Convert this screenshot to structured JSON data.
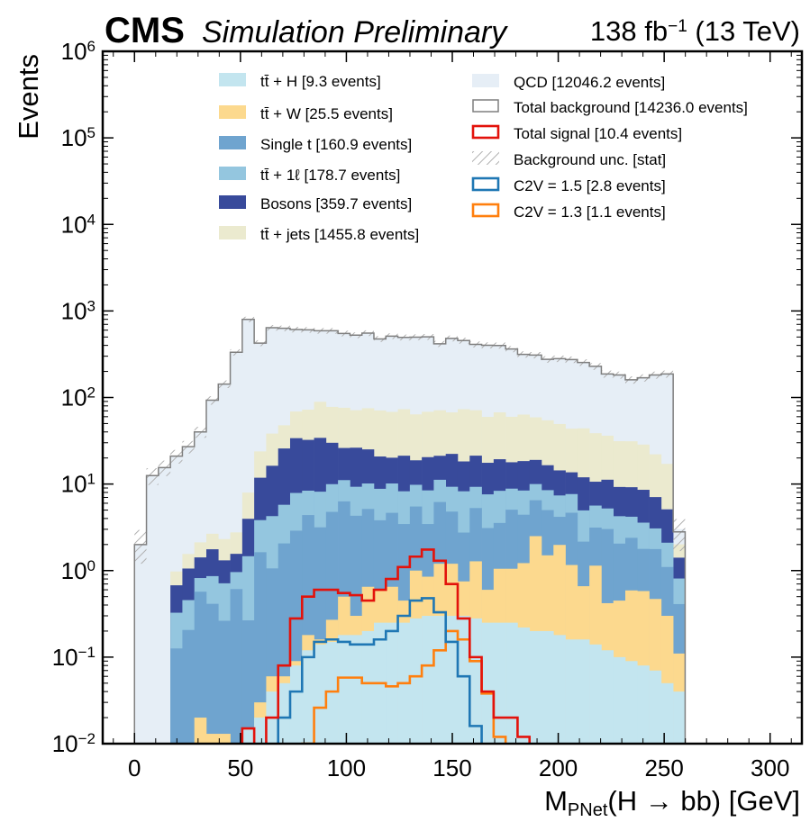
{
  "header": {
    "experiment": "CMS",
    "status": "Simulation Preliminary",
    "lumi_prefix": "138 fb",
    "lumi_exp": "−1",
    "lumi_suffix": " (13 TeV)"
  },
  "chart_data": {
    "type": "bar",
    "stacked": true,
    "histtype": "step-filled",
    "xlabel_main": "M",
    "xlabel_sub": "PNet",
    "xlabel_rest": "(H → bb) [GeV]",
    "ylabel": "Events",
    "xlim": [
      -15,
      315
    ],
    "ylim": [
      0.01,
      1000000
    ],
    "yscale": "log",
    "x_ticks": [
      0,
      50,
      100,
      150,
      200,
      250,
      300
    ],
    "y_ticks": [
      {
        "base": "10",
        "exp": "−2",
        "value": 0.01
      },
      {
        "base": "10",
        "exp": "−1",
        "value": 0.1
      },
      {
        "base": "10",
        "exp": "0",
        "value": 1
      },
      {
        "base": "10",
        "exp": "1",
        "value": 10
      },
      {
        "base": "10",
        "exp": "2",
        "value": 100
      },
      {
        "base": "10",
        "exp": "3",
        "value": 1000
      },
      {
        "base": "10",
        "exp": "4",
        "value": 10000
      },
      {
        "base": "10",
        "exp": "5",
        "value": 100000
      },
      {
        "base": "10",
        "exp": "6",
        "value": 1000000
      }
    ],
    "bin_width": 5.65,
    "bin_start": 0,
    "legend_placement": "upper",
    "stack": [
      {
        "name": "tt̄ + H [9.3 events]",
        "color": "#c3e5ef",
        "values": [
          0.001,
          0.001,
          0.001,
          0.005,
          0.005,
          0.01,
          0.008,
          0.008,
          0.01,
          0.015,
          0.02,
          0.04,
          0.05,
          0.08,
          0.12,
          0.14,
          0.15,
          0.18,
          0.18,
          0.2,
          0.25,
          0.25,
          0.25,
          0.28,
          0.3,
          0.3,
          0.3,
          0.3,
          0.28,
          0.25,
          0.25,
          0.25,
          0.22,
          0.2,
          0.2,
          0.18,
          0.16,
          0.16,
          0.14,
          0.12,
          0.1,
          0.09,
          0.08,
          0.07,
          0.05,
          0.04,
          0.001
        ]
      },
      {
        "name": "tt̄ + W [25.5 events]",
        "color": "#fcd98e",
        "values": [
          0.001,
          0.001,
          0.001,
          0.001,
          0.001,
          0.01,
          0.005,
          0.005,
          0.001,
          0.001,
          0.01,
          0.02,
          0.01,
          0.01,
          0.06,
          0.02,
          0.12,
          0.32,
          0.12,
          0.45,
          0.36,
          0.4,
          0.2,
          0.72,
          0.55,
          0.9,
          0.9,
          0.45,
          1.0,
          0.35,
          0.8,
          0.8,
          1.0,
          2.3,
          1.3,
          1.8,
          1.0,
          0.5,
          1.0,
          0.3,
          0.35,
          0.5,
          0.5,
          0.4,
          0.25,
          0.07,
          0.001
        ]
      },
      {
        "name": "Single t [160.9 events]",
        "color": "#6fa4cf",
        "values": [
          0.001,
          0.001,
          0.001,
          0.12,
          0.2,
          0.55,
          0.4,
          0.25,
          0.6,
          0.25,
          1.6,
          1.0,
          2.0,
          2.8,
          4.2,
          3.0,
          4.5,
          5.8,
          4.0,
          4.5,
          3.2,
          4.0,
          3.0,
          4.5,
          2.6,
          5.0,
          3.6,
          2.0,
          4.0,
          2.5,
          2.5,
          4.0,
          3.2,
          4.0,
          3.5,
          2.2,
          3.5,
          1.5,
          2.0,
          2.6,
          1.6,
          1.8,
          1.2,
          1.3,
          0.8,
          0.3,
          0.001
        ]
      },
      {
        "name": "tt̄ + 1ℓ [178.7 events]",
        "color": "#94c6df",
        "values": [
          0.001,
          0.001,
          0.001,
          0.2,
          0.25,
          0.25,
          0.45,
          0.45,
          0.35,
          1.2,
          2.2,
          3.2,
          3.7,
          5.0,
          4.0,
          5.0,
          5.2,
          4.8,
          5.0,
          5.0,
          5.0,
          5.5,
          4.8,
          4.3,
          5.0,
          5.0,
          4.5,
          5.5,
          4.0,
          4.5,
          4.8,
          3.8,
          4.0,
          3.5,
          3.5,
          3.2,
          3.0,
          2.8,
          2.5,
          2.2,
          2.2,
          1.8,
          1.8,
          1.3,
          1.0,
          0.4,
          0.001
        ]
      },
      {
        "name": "Bosons [359.7 events]",
        "color": "#384a9b",
        "values": [
          0.001,
          0.001,
          0.001,
          0.35,
          0.6,
          0.6,
          0.9,
          0.6,
          0.6,
          2.5,
          8,
          12,
          20,
          26,
          24,
          26,
          20,
          15,
          17,
          15,
          12,
          10,
          13,
          9,
          12,
          10,
          13,
          10,
          12,
          10,
          11,
          9,
          10,
          9,
          8,
          7,
          6,
          7,
          5,
          6,
          5,
          5,
          5,
          4,
          3,
          0.6,
          0.001
        ]
      },
      {
        "name": "tt̄ + jets [1455.8 events]",
        "color": "#ebeacf",
        "values": [
          0.001,
          0.001,
          0.001,
          0.3,
          0.5,
          0.7,
          0.9,
          1.0,
          1.2,
          4,
          12,
          22,
          22,
          35,
          40,
          55,
          48,
          50,
          45,
          50,
          50,
          48,
          52,
          45,
          48,
          50,
          45,
          55,
          50,
          42,
          48,
          42,
          45,
          40,
          38,
          35,
          30,
          32,
          28,
          25,
          22,
          22,
          20,
          15,
          12,
          0.6,
          0.001
        ]
      },
      {
        "name": "QCD [12046.2 events]",
        "color": "#e6eef6",
        "values": [
          2.0,
          12.5,
          15.5,
          20,
          25,
          38,
          90,
          140,
          330,
          790,
          400,
          600,
          580,
          540,
          530,
          500,
          510,
          470,
          450,
          480,
          400,
          440,
          420,
          430,
          430,
          350,
          410,
          380,
          340,
          340,
          330,
          300,
          250,
          250,
          220,
          230,
          230,
          210,
          190,
          150,
          150,
          130,
          140,
          160,
          170,
          1.0,
          0.001
        ]
      }
    ],
    "total_background": {
      "name": "Total background [14236.0 events]",
      "color": "#7f7f7f",
      "values": [
        2.0,
        12.5,
        15.5,
        21,
        27,
        40,
        93,
        143,
        333,
        800,
        425,
        640,
        630,
        610,
        605,
        590,
        590,
        550,
        525,
        555,
        475,
        512,
        495,
        498,
        502,
        417,
        482,
        455,
        411,
        401,
        399,
        363,
        315,
        309,
        276,
        281,
        274,
        254,
        229,
        187,
        182,
        160,
        169,
        182,
        187,
        2.8,
        0.001
      ]
    },
    "background_unc": {
      "name": "Background unc. [stat]",
      "hatch_color": "#b0b0b0"
    },
    "signals": [
      {
        "name": "Total signal [10.4 events]",
        "color": "#e3120b",
        "x_start_bin": 9,
        "values": [
          0.015,
          0.006,
          0.02,
          0.08,
          0.28,
          0.5,
          0.6,
          0.6,
          0.55,
          0.52,
          0.45,
          0.6,
          0.8,
          1.1,
          1.45,
          1.75,
          1.3,
          0.7,
          0.28,
          0.1,
          0.04,
          0.02,
          0.02,
          0.012,
          0.006
        ]
      },
      {
        "name": "C2V = 1.5 [2.8 events]",
        "color": "#1f77b4",
        "x_start_bin": 11,
        "values": [
          0.007,
          0.02,
          0.04,
          0.1,
          0.15,
          0.16,
          0.15,
          0.14,
          0.14,
          0.16,
          0.2,
          0.3,
          0.45,
          0.48,
          0.33,
          0.15,
          0.06,
          0.016,
          0.006
        ]
      },
      {
        "name": "C2V = 1.3 [1.1 events]",
        "color": "#ff7f0e",
        "x_start_bin": 13,
        "values": [
          0.006,
          0.01,
          0.026,
          0.04,
          0.058,
          0.058,
          0.05,
          0.05,
          0.046,
          0.05,
          0.06,
          0.08,
          0.12,
          0.2,
          0.16,
          0.09,
          0.038,
          0.012,
          0.005
        ]
      }
    ]
  }
}
